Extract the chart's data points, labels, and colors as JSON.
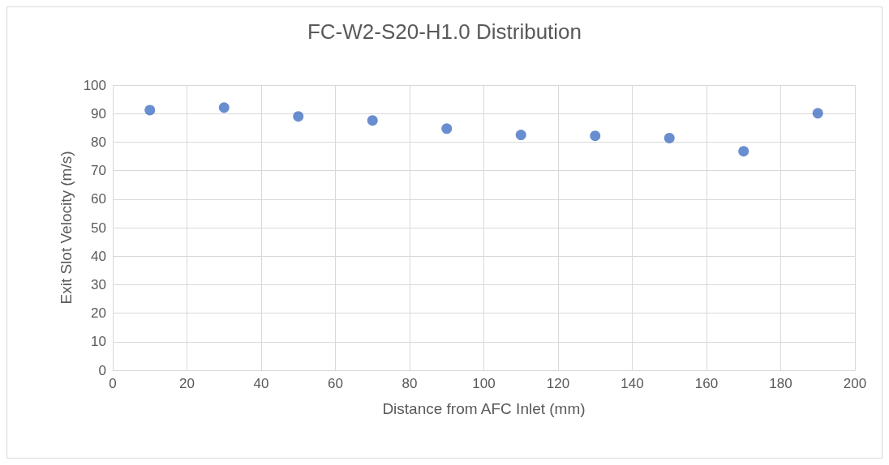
{
  "chart_data": {
    "type": "scatter",
    "title": "FC-W2-S20-H1.0 Distribution",
    "xlabel": "Distance from AFC Inlet (mm)",
    "ylabel": "Exit Slot Velocity (m/s)",
    "x": [
      10,
      30,
      50,
      70,
      90,
      110,
      130,
      150,
      170,
      190
    ],
    "series": [
      {
        "color": "#4472c4",
        "values": [
          91.2,
          92.1,
          89.0,
          87.6,
          84.7,
          82.5,
          82.2,
          81.4,
          76.8,
          90.1
        ]
      }
    ],
    "xlim": [
      0,
      200
    ],
    "xticks": [
      0,
      20,
      40,
      60,
      80,
      100,
      120,
      140,
      160,
      180,
      200
    ],
    "ylim": [
      0,
      100
    ],
    "yticks": [
      0,
      10,
      20,
      30,
      40,
      50,
      60,
      70,
      80,
      90,
      100
    ],
    "grid": true,
    "marker": "circle"
  }
}
